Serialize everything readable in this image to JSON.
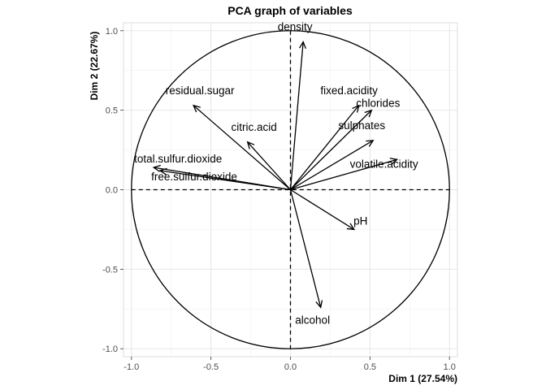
{
  "chart_data": {
    "type": "scatter",
    "title": "PCA graph of variables",
    "xlabel": "Dim 1 (27.54%)",
    "ylabel": "Dim 2 (22.67%)",
    "xlim": [
      -1.05,
      1.05
    ],
    "ylim": [
      -1.05,
      1.05
    ],
    "xticks": [
      -1.0,
      -0.5,
      0.0,
      0.5,
      1.0
    ],
    "yticks": [
      -1.0,
      -0.5,
      0.0,
      0.5,
      1.0
    ],
    "xtick_labels": [
      "-1.0",
      "-0.5",
      "0.0",
      "0.5",
      "1.0"
    ],
    "ytick_labels": [
      "-1.0",
      "-0.5",
      "0.0",
      "0.5",
      "1.0"
    ],
    "grid": true,
    "unit_circle": true,
    "variables": [
      {
        "name": "density",
        "x": 0.08,
        "y": 0.93
      },
      {
        "name": "fixed.acidity",
        "x": 0.43,
        "y": 0.53
      },
      {
        "name": "chlorides",
        "x": 0.51,
        "y": 0.5
      },
      {
        "name": "sulphates",
        "x": 0.52,
        "y": 0.31
      },
      {
        "name": "volatile.acidity",
        "x": 0.67,
        "y": 0.19
      },
      {
        "name": "residual.sugar",
        "x": -0.61,
        "y": 0.53
      },
      {
        "name": "citric.acid",
        "x": -0.27,
        "y": 0.3
      },
      {
        "name": "total.sulfur.dioxide",
        "x": -0.86,
        "y": 0.14
      },
      {
        "name": "free.sulfur.dioxide",
        "x": -0.82,
        "y": 0.12
      },
      {
        "name": "pH",
        "x": 0.4,
        "y": -0.25
      },
      {
        "name": "alcohol",
        "x": 0.19,
        "y": -0.74
      }
    ]
  }
}
